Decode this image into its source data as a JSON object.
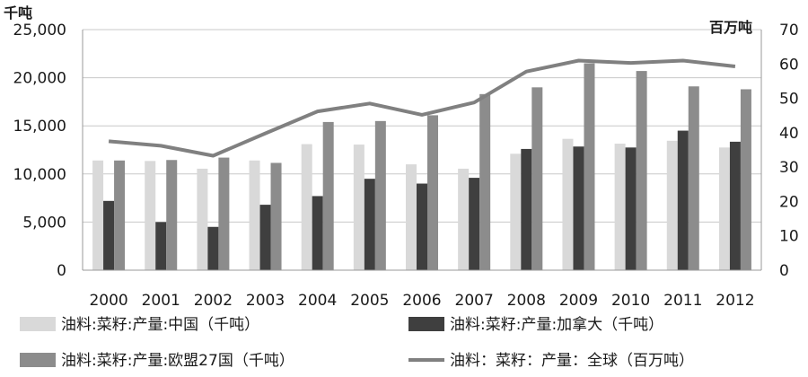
{
  "chart_data": {
    "type": "bar",
    "title": "",
    "categories": [
      "2000",
      "2001",
      "2002",
      "2003",
      "2004",
      "2005",
      "2006",
      "2007",
      "2008",
      "2009",
      "2010",
      "2011",
      "2012"
    ],
    "y_left": {
      "unit": "千吨",
      "ylim": [
        0,
        25000
      ],
      "ticks": [
        0,
        5000,
        10000,
        15000,
        20000,
        25000
      ],
      "tick_labels": [
        "0",
        "5,000",
        "10,000",
        "15,000",
        "20,000",
        "25,000"
      ]
    },
    "y_right": {
      "unit": "百万吨",
      "ylim": [
        0,
        70
      ],
      "ticks": [
        0,
        10,
        20,
        30,
        40,
        50,
        60,
        70
      ],
      "tick_labels": [
        "0",
        "10",
        "20",
        "30",
        "40",
        "50",
        "60",
        "70"
      ]
    },
    "grid": true,
    "legend_position": "bottom",
    "series": [
      {
        "name": "油料:菜籽:产量:中国（千吨）",
        "kind": "bar",
        "axis": "left",
        "color": "#d9d9d9",
        "values": [
          11400,
          11350,
          10550,
          11400,
          13100,
          13050,
          11000,
          10550,
          12100,
          13650,
          13150,
          13450,
          12750
        ]
      },
      {
        "name": "油料:菜籽:产量:加拿大（千吨）",
        "kind": "bar",
        "axis": "left",
        "color": "#3f3f3f",
        "values": [
          7200,
          5000,
          4500,
          6800,
          7700,
          9500,
          9000,
          9600,
          12600,
          12850,
          12750,
          14500,
          13350
        ]
      },
      {
        "name": "油料:菜籽:产量:欧盟27国（千吨）",
        "kind": "bar",
        "axis": "left",
        "color": "#8c8c8c",
        "values": [
          11400,
          11450,
          11700,
          11150,
          15400,
          15500,
          16100,
          18300,
          19000,
          21500,
          20700,
          19100,
          18800
        ]
      },
      {
        "name": "油料：菜籽：产量：全球（百万吨）",
        "kind": "line",
        "axis": "right",
        "color": "#808080",
        "values": [
          37.5,
          36.2,
          33.3,
          39.8,
          46.2,
          48.5,
          45.2,
          48.8,
          57.8,
          61.0,
          60.3,
          61.0,
          59.3
        ]
      }
    ]
  }
}
